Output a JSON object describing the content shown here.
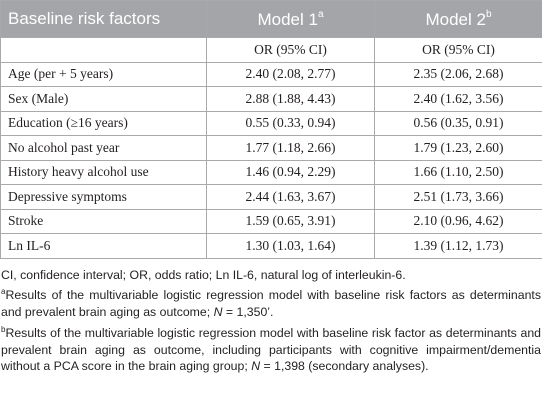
{
  "header": {
    "col0": "Baseline risk factors",
    "col1": {
      "text": "Model 1",
      "sup": "a"
    },
    "col2": {
      "text": "Model 2",
      "sup": "b"
    }
  },
  "subheader": [
    "OR (95% CI)",
    "OR (95% CI)"
  ],
  "rows": [
    [
      "Age (per + 5 years)",
      "2.40 (2.08, 2.77)",
      "2.35 (2.06, 2.68)"
    ],
    [
      "Sex (Male)",
      "2.88 (1.88, 4.43)",
      "2.40 (1.62, 3.56)"
    ],
    [
      "Education (≥16 years)",
      "0.55 (0.33, 0.94)",
      "0.56 (0.35, 0.91)"
    ],
    [
      "No alcohol past year",
      "1.77 (1.18, 2.66)",
      "1.79 (1.23, 2.60)"
    ],
    [
      "History heavy alcohol use",
      "1.46 (0.94, 2.29)",
      "1.66 (1.10, 2.50)"
    ],
    [
      "Depressive symptoms",
      "2.44 (1.63, 3.67)",
      "2.51 (1.73, 3.66)"
    ],
    [
      "Stroke",
      "1.59 (0.65, 3.91)",
      "2.10 (0.96, 4.62)"
    ],
    [
      "Ln IL-6",
      "1.30 (1.03, 1.64)",
      "1.39 (1.12, 1.73)"
    ]
  ],
  "footnotes": {
    "abbreviations": "CI, confidence interval; OR, odds ratio; Ln IL-6, natural log of interleukin-6.",
    "notes": [
      {
        "marker": "a",
        "parts": [
          "Results of the multivariable logistic regression model with baseline risk factors as determinants and prevalent brain aging as outcome; ",
          "N",
          " = 1,350’."
        ]
      },
      {
        "marker": "b",
        "parts": [
          "Results of the multivariable logistic regression model with baseline risk factor as determinants and prevalent brain aging as outcome, including participants with cognitive impairment/dementia without a PCA score in the brain aging group; ",
          "N",
          " = 1,398 (secondary analyses)."
        ]
      }
    ]
  }
}
